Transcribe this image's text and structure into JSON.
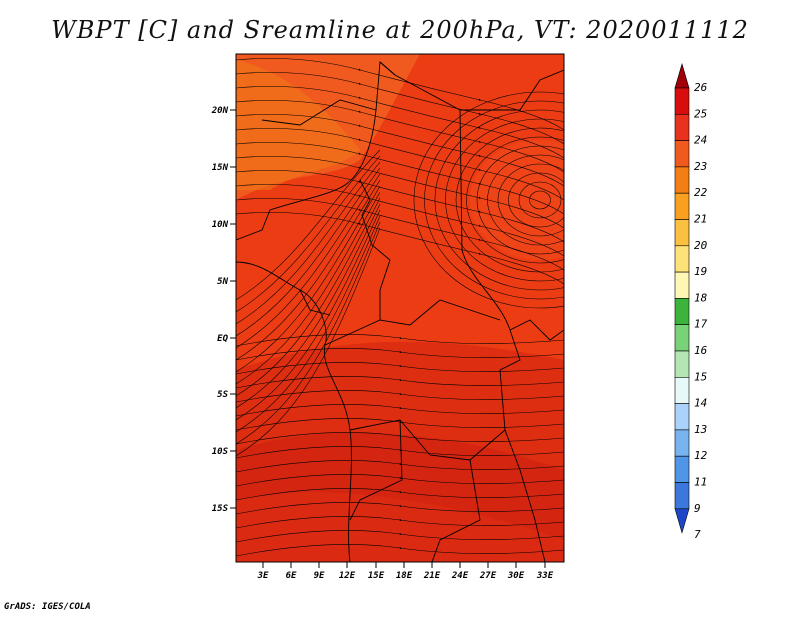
{
  "title": "WBPT [C] and Sreamline at 200hPa, VT: 2020011112",
  "credit": "GrADS: IGES/COLA",
  "map": {
    "lat_labels": [
      "20N",
      "15N",
      "10N",
      "5N",
      "EQ",
      "5S",
      "10S",
      "15S"
    ],
    "lon_labels": [
      "3E",
      "6E",
      "9E",
      "12E",
      "15E",
      "18E",
      "21E",
      "24E",
      "27E",
      "30E",
      "33E"
    ],
    "field_colors": {
      "base": "#ec3c14",
      "warm_north": "#f05a1e",
      "orange_band": "#f07a18",
      "dark_band": "#d82a10",
      "deep": "#cf2010"
    },
    "streamline_color": "#000000",
    "border_color": "#000000"
  },
  "colorbar": {
    "labels": [
      "26",
      "25",
      "24",
      "23",
      "22",
      "21",
      "20",
      "19",
      "18",
      "17",
      "16",
      "15",
      "14",
      "13",
      "12",
      "11",
      "9",
      "7"
    ],
    "colors": [
      "#c8000a",
      "#d80e0e",
      "#e8321e",
      "#f05a1e",
      "#f57d15",
      "#f9a020",
      "#fcc040",
      "#fde27a",
      "#fdf6b4",
      "#3cb43c",
      "#78d278",
      "#b4e6b4",
      "#e6f8f8",
      "#aad2fa",
      "#78b4f0",
      "#5096e6",
      "#3c78dc",
      "#2c5ad2"
    ],
    "top_arrow_color": "#a00008",
    "bottom_arrow_color": "#1e46c8"
  }
}
